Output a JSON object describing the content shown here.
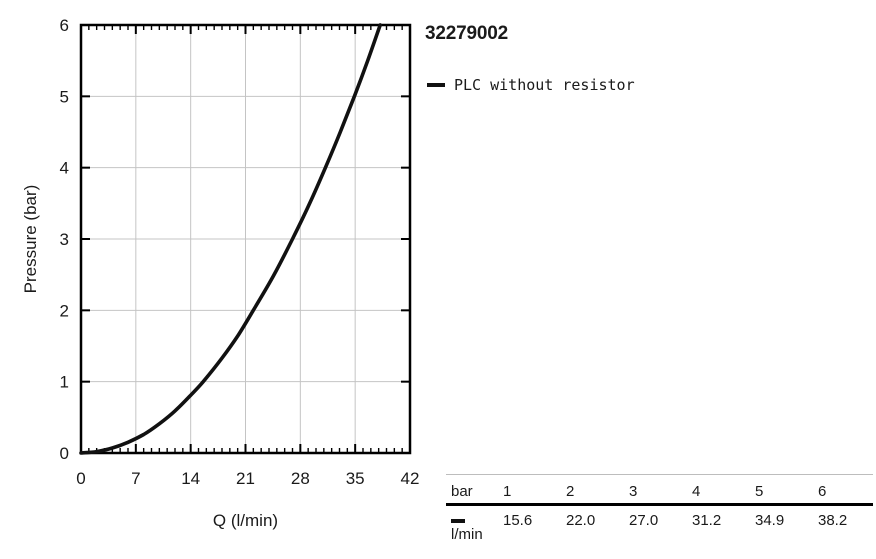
{
  "chart_data": {
    "type": "line",
    "title": "32279002",
    "xlabel": "Q (l/min)",
    "ylabel": "Pressure (bar)",
    "xlim": [
      0,
      42
    ],
    "ylim": [
      0,
      6
    ],
    "x_major_step": 7,
    "x_minor_step": 1,
    "y_major_step": 1,
    "grid": true,
    "legend_position": "right-of-plot",
    "colors": {
      "line": "#111111",
      "grid": "#c4c4c4",
      "text": "#1a1a1a"
    },
    "series": [
      {
        "name": "PLC without resistor",
        "x": [
          0,
          2,
          4,
          6,
          8,
          10,
          12,
          14,
          15.6,
          18,
          20,
          22,
          24.6,
          27,
          29.2,
          31.2,
          33.1,
          34.9,
          36.6,
          38.2
        ],
        "y": [
          0,
          0.02,
          0.07,
          0.15,
          0.26,
          0.41,
          0.59,
          0.81,
          1,
          1.33,
          1.64,
          2,
          2.49,
          3,
          3.5,
          4,
          4.5,
          5,
          5.5,
          6
        ]
      }
    ],
    "key_points": {
      "pressure_bar": [
        1,
        2,
        3,
        4,
        5,
        6
      ],
      "flow_l_min": [
        15.6,
        22.0,
        27.0,
        31.2,
        34.9,
        38.2
      ]
    },
    "table": {
      "header": [
        "bar",
        "1",
        "2",
        "3",
        "4",
        "5",
        "6"
      ],
      "row_unit": "l/min",
      "values": [
        "15.6",
        "22.0",
        "27.0",
        "31.2",
        "34.9",
        "38.2"
      ]
    }
  }
}
